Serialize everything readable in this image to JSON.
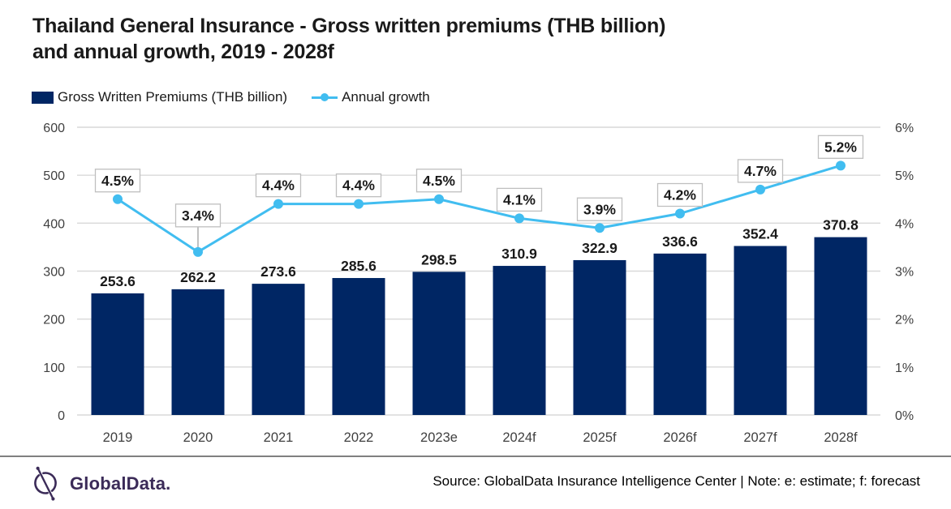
{
  "title": {
    "line1": "Thailand General Insurance - Gross written premiums (THB billion)",
    "line2": "and annual growth, 2019 - 2028f"
  },
  "legend": {
    "bar_label": "Gross Written Premiums (THB billion)",
    "line_label": "Annual growth"
  },
  "chart_data": {
    "type": "combo-bar-line",
    "title": "Thailand General Insurance - Gross written premiums (THB billion) and annual growth, 2019 - 2028f",
    "categories": [
      "2019",
      "2020",
      "2021",
      "2022",
      "2023e",
      "2024f",
      "2025f",
      "2026f",
      "2027f",
      "2028f"
    ],
    "series": [
      {
        "name": "Gross Written Premiums (THB billion)",
        "type": "bar",
        "axis": "left",
        "values": [
          253.6,
          262.2,
          273.6,
          285.6,
          298.5,
          310.9,
          322.9,
          336.6,
          352.4,
          370.8
        ],
        "data_labels": [
          "253.6",
          "262.2",
          "273.6",
          "285.6",
          "298.5",
          "310.9",
          "322.9",
          "336.6",
          "352.4",
          "370.8"
        ]
      },
      {
        "name": "Annual growth",
        "type": "line",
        "axis": "right",
        "values": [
          4.5,
          3.4,
          4.4,
          4.4,
          4.5,
          4.1,
          3.9,
          4.2,
          4.7,
          5.2
        ],
        "data_labels": [
          "4.5%",
          "3.4%",
          "4.4%",
          "4.4%",
          "4.5%",
          "4.1%",
          "3.9%",
          "4.2%",
          "4.7%",
          "5.2%"
        ]
      }
    ],
    "left_axis": {
      "min": 0,
      "max": 600,
      "step": 100,
      "tick_labels": [
        "0",
        "100",
        "200",
        "300",
        "400",
        "500",
        "600"
      ]
    },
    "right_axis": {
      "min": 0,
      "max": 6,
      "step": 1,
      "tick_labels": [
        "0%",
        "1%",
        "2%",
        "3%",
        "4%",
        "5%",
        "6%"
      ]
    },
    "grid": true,
    "legend_position": "top-left"
  },
  "footer": {
    "logo_text": "GlobalData.",
    "source": "Source: GlobalData Insurance Intelligence Center | Note: e: estimate; f: forecast"
  },
  "colors": {
    "bar": "#002664",
    "line": "#41bdf0",
    "grid": "#d9d9d9",
    "axis_text": "#404040",
    "label_text": "#1a1a1a",
    "callout_border": "#bfbfbf",
    "callout_bg": "#ffffff",
    "leader": "#a6a6a6",
    "divider": "#808080",
    "logo": "#3b2b58",
    "title_text": "#1a1a1a"
  }
}
